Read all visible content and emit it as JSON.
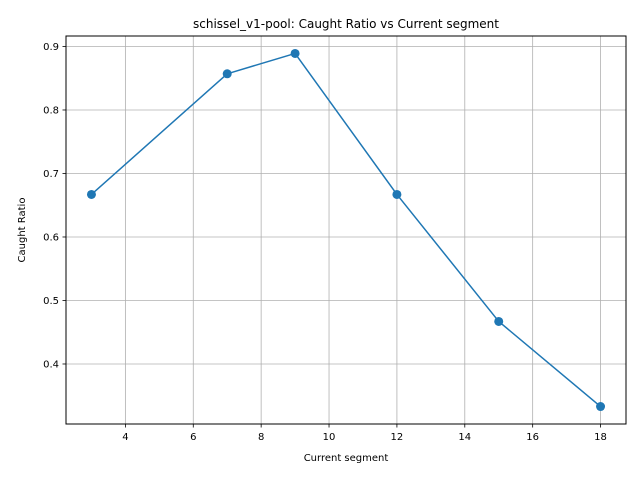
{
  "chart_data": {
    "type": "line",
    "title": "schissel_v1-pool: Caught Ratio vs Current segment",
    "xlabel": "Current segment",
    "ylabel": "Caught Ratio",
    "x": [
      3,
      7,
      9,
      12,
      15,
      18
    ],
    "series": [
      {
        "values": [
          0.667,
          0.857,
          0.889,
          0.667,
          0.467,
          0.333
        ],
        "color": "#1f77b4",
        "marker": "circle"
      }
    ],
    "xlim": [
      2.25,
      18.75
    ],
    "ylim": [
      0.3055,
      0.9165
    ],
    "xticks": [
      4,
      6,
      8,
      10,
      12,
      14,
      16,
      18
    ],
    "yticks": [
      0.4,
      0.5,
      0.6,
      0.7,
      0.8,
      0.9
    ],
    "ytick_labels": [
      "0.4",
      "0.5",
      "0.6",
      "0.7",
      "0.8",
      "0.9"
    ],
    "grid": true,
    "legend": "none"
  }
}
